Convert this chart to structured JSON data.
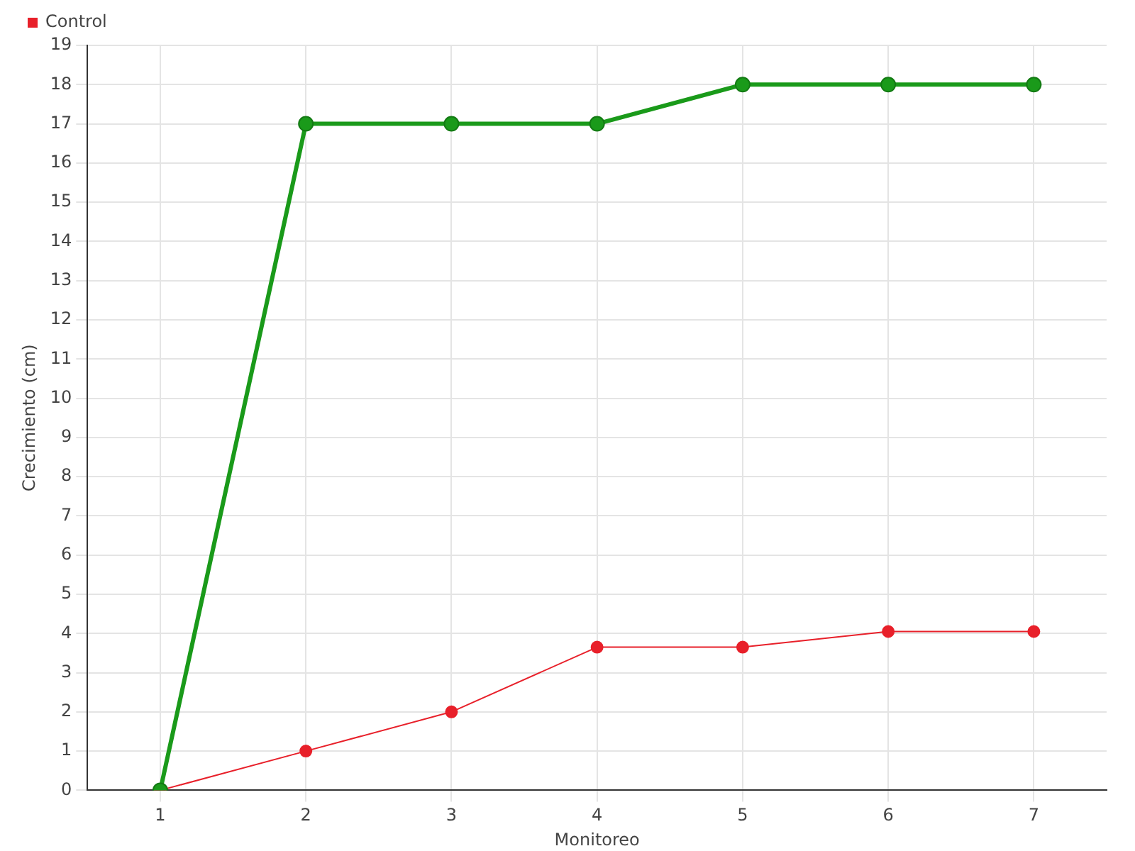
{
  "chart_data": {
    "type": "line",
    "xlabel": "Monitoreo",
    "ylabel": "Crecimiento (cm)",
    "categories": [
      "1",
      "2",
      "3",
      "4",
      "5",
      "6",
      "7"
    ],
    "series": [
      {
        "color": "#1a9a1a",
        "values": [
          0,
          17,
          17,
          17,
          18,
          18,
          18
        ]
      },
      {
        "name": "Control",
        "color": "#e8202a",
        "values": [
          0,
          1,
          2,
          3.65,
          3.65,
          4.05,
          4.05
        ]
      }
    ],
    "ylim": [
      0,
      19
    ],
    "yticks": [
      0,
      1,
      2,
      3,
      4,
      5,
      6,
      7,
      8,
      9,
      10,
      11,
      12,
      13,
      14,
      15,
      16,
      17,
      18,
      19
    ],
    "grid": true,
    "legend": "top left",
    "marker": "circle",
    "line_style": "solid"
  }
}
